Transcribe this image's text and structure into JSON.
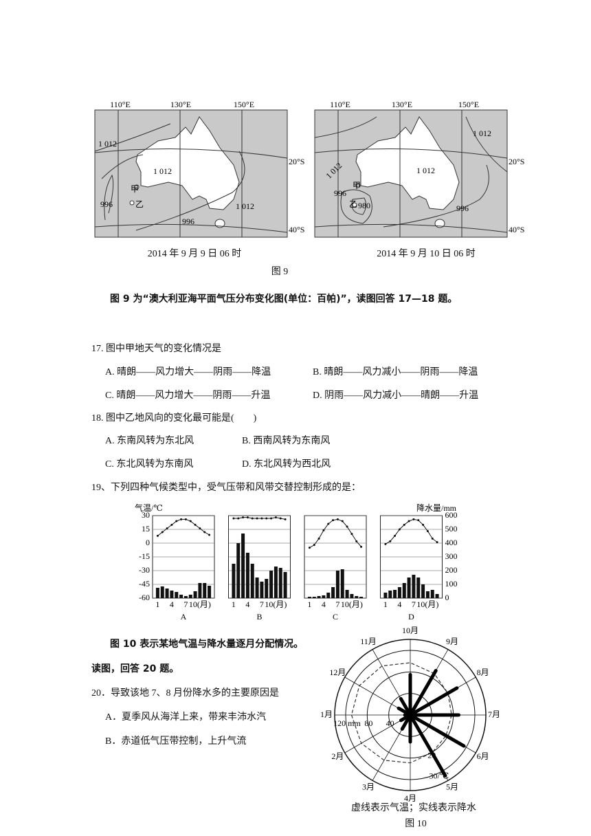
{
  "figure9": {
    "maps": [
      {
        "lon_labels": [
          "110°E",
          "130°E",
          "150°E"
        ],
        "lat_labels": [
          "20°S",
          "40°S"
        ],
        "isobar_labels": [
          "1 012",
          "1 012",
          "996",
          "996",
          "1 012"
        ],
        "places": [
          "甲",
          "乙"
        ],
        "caption": "2014 年 9 月 9 日 06 时"
      },
      {
        "lon_labels": [
          "110°E",
          "130°E",
          "150°E"
        ],
        "lat_labels": [
          "20°S",
          "40°S"
        ],
        "isobar_labels": [
          "1 012",
          "1 012",
          "1 012",
          "996",
          "980",
          "996"
        ],
        "places": [
          "甲",
          "乙"
        ],
        "caption": "2014 年 9 月 10 日 06 时"
      }
    ],
    "title": "图 9",
    "intro": "图 9 为“澳大利亚海平面气压分布变化图(单位：百帕)”，读图回答 17—18 题。"
  },
  "questions": [
    {
      "stem": "17. 图中甲地天气的变化情况是",
      "options": [
        "A. 晴朗——风力增大——阴雨——降温",
        "B. 晴朗——风力减小——阴雨——降温",
        "C. 晴朗——风力增大——阴雨——升温",
        "D. 阴雨——风力减小——晴朗——升温"
      ]
    },
    {
      "stem": "18. 图中乙地风向的变化最可能是(　　)",
      "options": [
        "A. 东南风转为东北风",
        "B. 西南风转为东南风",
        "C. 东北风转为东南风",
        "D. 东北风转为西北风"
      ]
    },
    {
      "stem": "19、下列四种气候类型中，受气压带和风带交替控制形成的是："
    }
  ],
  "climate": {
    "temp_axis_title": "气温/℃",
    "precip_axis_title": "降水量/mm",
    "templim": [
      -60,
      30
    ],
    "precip_lim": [
      0,
      600
    ],
    "temp_ticks": [
      30,
      15,
      0,
      -15,
      -30,
      -45,
      -60
    ],
    "precip_ticks": [
      600,
      500,
      400,
      300,
      200,
      100,
      0
    ],
    "xticks": [
      1,
      4,
      7,
      {
        "value": 10,
        "label": "10(月)"
      }
    ],
    "panels": [
      {
        "name": "A",
        "temp": [
          8,
          12,
          16,
          20,
          24,
          26,
          26,
          24,
          20,
          16,
          12,
          9
        ],
        "precip": [
          75,
          85,
          70,
          55,
          45,
          25,
          15,
          25,
          50,
          110,
          110,
          90
        ]
      },
      {
        "name": "B",
        "temp": [
          27,
          27,
          28,
          28,
          27,
          27,
          27,
          27,
          27,
          28,
          27,
          26
        ],
        "precip": [
          250,
          400,
          470,
          330,
          250,
          150,
          120,
          140,
          200,
          230,
          220,
          190
        ]
      },
      {
        "name": "C",
        "temp": [
          -5,
          -2,
          5,
          14,
          21,
          25,
          26,
          24,
          18,
          10,
          2,
          -4
        ],
        "precip": [
          10,
          10,
          15,
          20,
          40,
          80,
          200,
          210,
          60,
          30,
          15,
          10
        ]
      },
      {
        "name": "D",
        "temp": [
          -1,
          2,
          8,
          15,
          20,
          24,
          26,
          25,
          20,
          13,
          5,
          1
        ],
        "precip": [
          40,
          55,
          60,
          80,
          110,
          150,
          170,
          150,
          100,
          50,
          60,
          30
        ]
      }
    ]
  },
  "figure10": {
    "intro": "图 10 表示某地气温与降水量逐月分配情况。",
    "instruction": "读图，回答 20 题。",
    "question": {
      "stem": "20．导致该地 7、8 月份降水多的主要原因是",
      "options": [
        "A．夏季风从海洋上来，带来丰沛水汽",
        "B．赤道低气压带控制，上升气流"
      ]
    },
    "months": [
      "1月",
      "2月",
      "3月",
      "4月",
      "5月",
      "6月",
      "7月",
      "8月",
      "9月",
      "10月",
      "11月",
      "12月"
    ],
    "precip_lim": [
      0,
      120
    ],
    "precip_ticks": [
      40,
      80,
      {
        "value": 120,
        "label": "120 mm"
      }
    ],
    "temp_lim": [
      0,
      30
    ],
    "temp_ticks": [
      20,
      {
        "value": 30,
        "label": "30/℃"
      }
    ],
    "precip": [
      10,
      20,
      30,
      50,
      130,
      115,
      90,
      100,
      95,
      75,
      35,
      25
    ],
    "temperature": [
      27,
      26,
      24,
      22,
      20,
      19,
      19,
      20,
      22,
      24,
      26,
      27
    ],
    "note": "虚线表示气温；实线表示降水",
    "title": "图 10"
  }
}
